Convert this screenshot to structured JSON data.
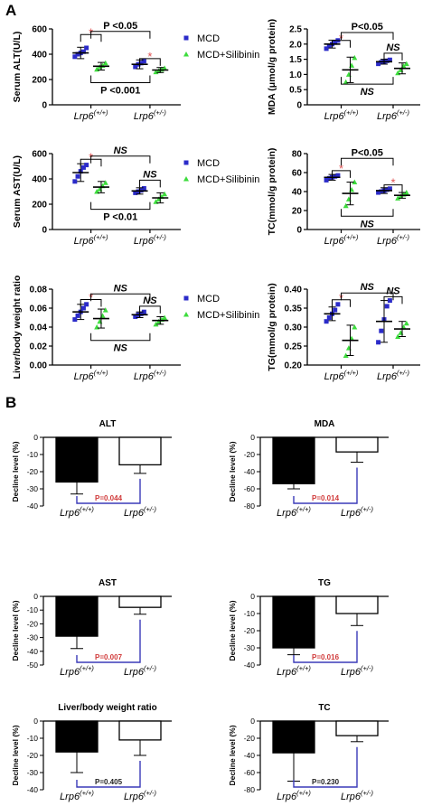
{
  "panels": {
    "A": "A",
    "B": "B"
  },
  "colors": {
    "mcd": "#2b2bc9",
    "sil": "#3ddc3d",
    "star": "#e05050",
    "bracket_b": "#3a3ab8",
    "p_sig": "#d03a3a",
    "p_ns": "#222222"
  },
  "legend": {
    "mcd": "MCD",
    "sil": "MCD+Silibinin"
  },
  "chart_data": [
    {
      "id": "alt",
      "type": "scatter",
      "ylabel": "Serum ALT(U/L)",
      "ylim": [
        0,
        600
      ],
      "yticks": [
        0,
        200,
        400,
        600
      ],
      "groups": [
        {
          "label": "Lrp6",
          "sup": "(+/+)",
          "mcd": {
            "mean": 410,
            "sd": 45,
            "points": [
              380,
              400,
              410,
              420,
              450
            ]
          },
          "sil": {
            "mean": 305,
            "sd": 30,
            "points": [
              280,
              300,
              310,
              330
            ]
          }
        },
        {
          "label": "Lrp6",
          "sup": "(+/-)",
          "mcd": {
            "mean": 320,
            "sd": 35,
            "points": [
              300,
              320,
              330,
              345
            ]
          },
          "sil": {
            "mean": 275,
            "sd": 20,
            "points": [
              260,
              270,
              280,
              290
            ]
          }
        }
      ],
      "annotations": [
        {
          "kind": "star",
          "text": "*",
          "pair": "within-0",
          "y": 555
        },
        {
          "kind": "label",
          "text": "P <0.05",
          "pair": "top",
          "y": 580
        },
        {
          "kind": "star",
          "text": "*",
          "pair": "within-1",
          "y": 365
        },
        {
          "kind": "label",
          "text": "P <0.001",
          "pair": "bottom",
          "y": 175
        }
      ]
    },
    {
      "id": "mda",
      "type": "scatter",
      "ylabel": "MDA (μmol/g protein)",
      "ylim": [
        0,
        2.5
      ],
      "yticks": [
        0,
        0.5,
        1.0,
        1.5,
        2.0,
        2.5
      ],
      "ytick_labels": [
        "0",
        "0.5",
        "1.0",
        "1.5",
        "2.0",
        "2.5"
      ],
      "groups": [
        {
          "label": "Lrp6",
          "sup": "(+/+)",
          "mcd": {
            "mean": 2.0,
            "sd": 0.13,
            "points": [
              1.85,
              1.95,
              2.0,
              2.05,
              2.12
            ]
          },
          "sil": {
            "mean": 1.15,
            "sd": 0.42,
            "points": [
              0.75,
              1.0,
              1.3,
              1.55
            ]
          }
        },
        {
          "label": "Lrp6",
          "sup": "(+/-)",
          "mcd": {
            "mean": 1.42,
            "sd": 0.08,
            "points": [
              1.35,
              1.4,
              1.42,
              1.45,
              1.48
            ]
          },
          "sil": {
            "mean": 1.2,
            "sd": 0.18,
            "points": [
              1.05,
              1.15,
              1.28,
              1.35
            ]
          }
        }
      ],
      "annotations": [
        {
          "kind": "star",
          "text": "*",
          "pair": "within-0",
          "y": 2.12
        },
        {
          "kind": "label",
          "text": "P<0.05",
          "pair": "top",
          "y": 2.38
        },
        {
          "kind": "label",
          "text": "NS",
          "pair": "within-1",
          "y": 1.7
        },
        {
          "kind": "label",
          "text": "NS",
          "pair": "bottom",
          "y": 0.68
        }
      ]
    },
    {
      "id": "ast",
      "type": "scatter",
      "ylabel": "Serum AST(U/L)",
      "ylim": [
        0,
        600
      ],
      "yticks": [
        0,
        200,
        400,
        600
      ],
      "groups": [
        {
          "label": "Lrp6",
          "sup": "(+/+)",
          "mcd": {
            "mean": 450,
            "sd": 70,
            "points": [
              380,
              420,
              460,
              490,
              510
            ]
          },
          "sil": {
            "mean": 335,
            "sd": 45,
            "points": [
              300,
              320,
              345,
              370
            ]
          }
        },
        {
          "label": "Lrp6",
          "sup": "(+/-)",
          "mcd": {
            "mean": 305,
            "sd": 25,
            "points": [
              290,
              300,
              310,
              325
            ]
          },
          "sil": {
            "mean": 250,
            "sd": 40,
            "points": [
              220,
              240,
              260,
              280
            ]
          }
        }
      ],
      "annotations": [
        {
          "kind": "star",
          "text": "*",
          "pair": "within-0",
          "y": 555
        },
        {
          "kind": "label",
          "text": "NS",
          "pair": "top",
          "y": 580
        },
        {
          "kind": "label",
          "text": "NS",
          "pair": "within-1",
          "y": 390
        },
        {
          "kind": "label",
          "text": "P <0.01",
          "pair": "bottom",
          "y": 160
        }
      ]
    },
    {
      "id": "tc",
      "type": "scatter",
      "ylabel": "TC(mmol/g protein)",
      "ylim": [
        0,
        80
      ],
      "yticks": [
        0,
        20,
        40,
        60,
        80
      ],
      "groups": [
        {
          "label": "Lrp6",
          "sup": "(+/+)",
          "mcd": {
            "mean": 55,
            "sd": 3,
            "points": [
              52,
              54,
              55,
              56,
              57
            ]
          },
          "sil": {
            "mean": 38,
            "sd": 12,
            "points": [
              25,
              32,
              42,
              50
            ]
          }
        },
        {
          "label": "Lrp6",
          "sup": "(+/-)",
          "mcd": {
            "mean": 41,
            "sd": 3,
            "points": [
              39,
              40,
              41,
              42,
              43
            ]
          },
          "sil": {
            "mean": 36,
            "sd": 3,
            "points": [
              33,
              35,
              37,
              39
            ]
          }
        }
      ],
      "annotations": [
        {
          "kind": "star",
          "text": "*",
          "pair": "within-0",
          "y": 62
        },
        {
          "kind": "label",
          "text": "P<0.05",
          "pair": "top",
          "y": 75
        },
        {
          "kind": "star",
          "text": "*",
          "pair": "within-1",
          "y": 47
        },
        {
          "kind": "label",
          "text": "NS",
          "pair": "bottom",
          "y": 14
        }
      ]
    },
    {
      "id": "lbw",
      "type": "scatter",
      "ylabel": "Liver/body weight ratio",
      "ylim": [
        0,
        0.08
      ],
      "yticks": [
        0,
        0.02,
        0.04,
        0.06,
        0.08
      ],
      "ytick_labels": [
        "0.00",
        "0.02",
        "0.04",
        "0.06",
        "0.08"
      ],
      "groups": [
        {
          "label": "Lrp6",
          "sup": "(+/+)",
          "mcd": {
            "mean": 0.056,
            "sd": 0.008,
            "points": [
              0.048,
              0.052,
              0.056,
              0.06,
              0.064
            ]
          },
          "sil": {
            "mean": 0.049,
            "sd": 0.01,
            "points": [
              0.04,
              0.046,
              0.052,
              0.058
            ]
          }
        },
        {
          "label": "Lrp6",
          "sup": "(+/-)",
          "mcd": {
            "mean": 0.053,
            "sd": 0.003,
            "points": [
              0.051,
              0.053,
              0.054,
              0.056
            ]
          },
          "sil": {
            "mean": 0.047,
            "sd": 0.004,
            "points": [
              0.043,
              0.046,
              0.048,
              0.05
            ]
          }
        }
      ],
      "annotations": [
        {
          "kind": "star",
          "text": "*",
          "pair": "within-0",
          "y": 0.069
        },
        {
          "kind": "label",
          "text": "NS",
          "pair": "top",
          "y": 0.075
        },
        {
          "kind": "label",
          "text": "NS",
          "pair": "within-1",
          "y": 0.062
        },
        {
          "kind": "label",
          "text": "NS",
          "pair": "bottom",
          "y": 0.026
        }
      ]
    },
    {
      "id": "tg",
      "type": "scatter",
      "ylabel": "TG(mmol/g protein)",
      "ylim": [
        0.2,
        0.4
      ],
      "yticks": [
        0.2,
        0.25,
        0.3,
        0.35,
        0.4
      ],
      "ytick_labels": [
        "0.20",
        "0.25",
        "0.30",
        "0.35",
        "0.40"
      ],
      "groups": [
        {
          "label": "Lrp6",
          "sup": "(+/+)",
          "mcd": {
            "mean": 0.335,
            "sd": 0.018,
            "points": [
              0.315,
              0.325,
              0.335,
              0.345,
              0.36
            ]
          },
          "sil": {
            "mean": 0.265,
            "sd": 0.04,
            "points": [
              0.225,
              0.245,
              0.27,
              0.3
            ]
          }
        },
        {
          "label": "Lrp6",
          "sup": "(+/-)",
          "mcd": {
            "mean": 0.315,
            "sd": 0.055,
            "points": [
              0.26,
              0.29,
              0.32,
              0.355,
              0.37
            ]
          },
          "sil": {
            "mean": 0.295,
            "sd": 0.02,
            "points": [
              0.275,
              0.285,
              0.3,
              0.31
            ]
          }
        }
      ],
      "annotations": [
        {
          "kind": "star",
          "text": "*",
          "pair": "within-0",
          "y": 0.372
        },
        {
          "kind": "label",
          "text": "NS",
          "pair": "top",
          "y": 0.39
        },
        {
          "kind": "label",
          "text": "NS",
          "pair": "within-1",
          "y": 0.38
        }
      ]
    },
    {
      "id": "b_alt",
      "type": "bar",
      "title": "ALT",
      "ylabel": "Decline level (%)",
      "ylim": [
        -40,
        0
      ],
      "yticks": [
        0,
        -10,
        -20,
        -30,
        -40
      ],
      "categories": [
        {
          "label": "Lrp6",
          "sup": "(+/+)"
        },
        {
          "label": "Lrp6",
          "sup": "(+/-)"
        }
      ],
      "values": [
        -26,
        -16
      ],
      "errors": [
        7,
        5
      ],
      "p_text": "P=0.044",
      "significant": true
    },
    {
      "id": "b_mda",
      "type": "bar",
      "title": "MDA",
      "ylabel": "Decline level (%)",
      "ylim": [
        -80,
        0
      ],
      "yticks": [
        0,
        -20,
        -40,
        -60,
        -80
      ],
      "categories": [
        {
          "label": "Lrp6",
          "sup": "(+/+)"
        },
        {
          "label": "Lrp6",
          "sup": "(+/-)"
        }
      ],
      "values": [
        -54,
        -17
      ],
      "errors": [
        6,
        12
      ],
      "p_text": "P=0.014",
      "significant": true
    },
    {
      "id": "b_ast",
      "type": "bar",
      "title": "AST",
      "ylabel": "Decline level (%)",
      "ylim": [
        -50,
        0
      ],
      "yticks": [
        0,
        -10,
        -20,
        -30,
        -40,
        -50
      ],
      "categories": [
        {
          "label": "Lrp6",
          "sup": "(+/+)"
        },
        {
          "label": "Lrp6",
          "sup": "(+/-)"
        }
      ],
      "values": [
        -29,
        -8
      ],
      "errors": [
        9,
        5
      ],
      "p_text": "P=0.007",
      "significant": true
    },
    {
      "id": "b_tg",
      "type": "bar",
      "title": "TG",
      "ylabel": "Decline level (%)",
      "ylim": [
        -40,
        0
      ],
      "yticks": [
        0,
        -10,
        -20,
        -30,
        -40
      ],
      "categories": [
        {
          "label": "Lrp6",
          "sup": "(+/+)"
        },
        {
          "label": "Lrp6",
          "sup": "(+/-)"
        }
      ],
      "values": [
        -30,
        -10
      ],
      "errors": [
        4,
        7
      ],
      "p_text": "P=0.016",
      "significant": true
    },
    {
      "id": "b_lbw",
      "type": "bar",
      "title": "Liver/body weight ratio",
      "ylabel": "Decline level (%)",
      "ylim": [
        -40,
        0
      ],
      "yticks": [
        0,
        -10,
        -20,
        -30,
        -40
      ],
      "categories": [
        {
          "label": "Lrp6",
          "sup": "(+/+)"
        },
        {
          "label": "Lrp6",
          "sup": "(+/-)"
        }
      ],
      "values": [
        -18,
        -11
      ],
      "errors": [
        12,
        9
      ],
      "p_text": "P=0.405",
      "significant": false
    },
    {
      "id": "b_tc",
      "type": "bar",
      "title": "TC",
      "ylabel": "Decline level (%)",
      "ylim": [
        -80,
        0
      ],
      "yticks": [
        0,
        -20,
        -40,
        -60,
        -80
      ],
      "categories": [
        {
          "label": "Lrp6",
          "sup": "(+/+)"
        },
        {
          "label": "Lrp6",
          "sup": "(+/-)"
        }
      ],
      "values": [
        -37,
        -17
      ],
      "errors": [
        33,
        7
      ],
      "p_text": "P=0.230",
      "significant": false
    }
  ]
}
